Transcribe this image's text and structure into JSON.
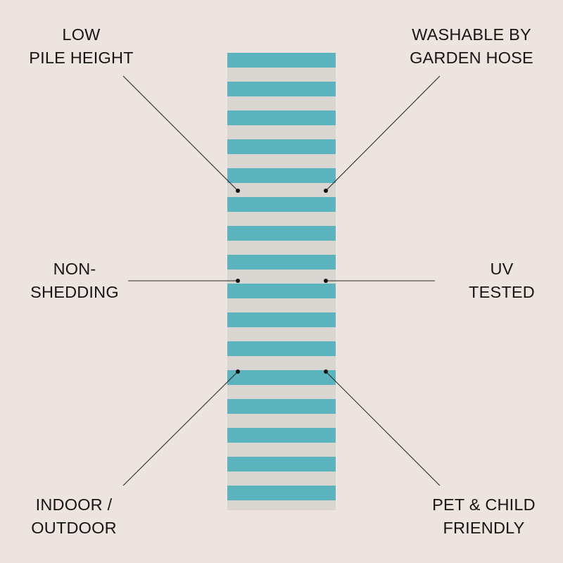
{
  "colors": {
    "background": "#ede4df",
    "stripe_teal": "#5bb3bd",
    "stripe_light": "#d9d6d1",
    "line": "#2a2a2a",
    "dot": "#111111"
  },
  "features": {
    "low_pile": {
      "line1": "LOW",
      "line2": "PILE HEIGHT"
    },
    "washable": {
      "line1": "WASHABLE BY",
      "line2": "GARDEN HOSE"
    },
    "non_shedding": {
      "line1": "NON-",
      "line2": "SHEDDING"
    },
    "uv": {
      "line1": "UV",
      "line2": "TESTED"
    },
    "indoor_outdoor": {
      "line1": "INDOOR /",
      "line2": "OUTDOOR"
    },
    "pet_child": {
      "line1": "PET & CHILD",
      "line2": "FRIENDLY"
    }
  }
}
